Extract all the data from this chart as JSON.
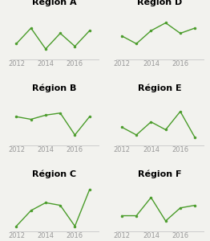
{
  "regions": [
    {
      "title": "Région A",
      "x": [
        2012,
        2013,
        2014,
        2015,
        2016,
        2017
      ],
      "y": [
        3,
        6,
        2,
        5,
        2.5,
        5.5
      ]
    },
    {
      "title": "Région D",
      "x": [
        2012,
        2013,
        2014,
        2015,
        2016,
        2017
      ],
      "y": [
        4.5,
        3,
        5.5,
        7,
        5,
        6
      ]
    },
    {
      "title": "Région B",
      "x": [
        2012,
        2013,
        2014,
        2015,
        2016,
        2017
      ],
      "y": [
        5.5,
        5,
        5.8,
        6.2,
        2,
        5.5
      ]
    },
    {
      "title": "Région E",
      "x": [
        2012,
        2013,
        2014,
        2015,
        2016,
        2017
      ],
      "y": [
        3.5,
        2,
        4.5,
        3,
        6.5,
        1.5
      ]
    },
    {
      "title": "Région C",
      "x": [
        2012,
        2013,
        2014,
        2015,
        2016,
        2017
      ],
      "y": [
        1,
        4,
        5.5,
        5,
        1,
        8
      ]
    },
    {
      "title": "Région F",
      "x": [
        2012,
        2013,
        2014,
        2015,
        2016,
        2017
      ],
      "y": [
        3,
        3,
        6.5,
        2,
        4.5,
        5
      ]
    }
  ],
  "line_color": "#4a9c2a",
  "marker_color": "#4a9c2a",
  "bg_color": "#f2f2ee",
  "title_fontsize": 8,
  "tick_fontsize": 6,
  "xticks": [
    2012,
    2014,
    2016
  ],
  "ylim": [
    0,
    10
  ]
}
